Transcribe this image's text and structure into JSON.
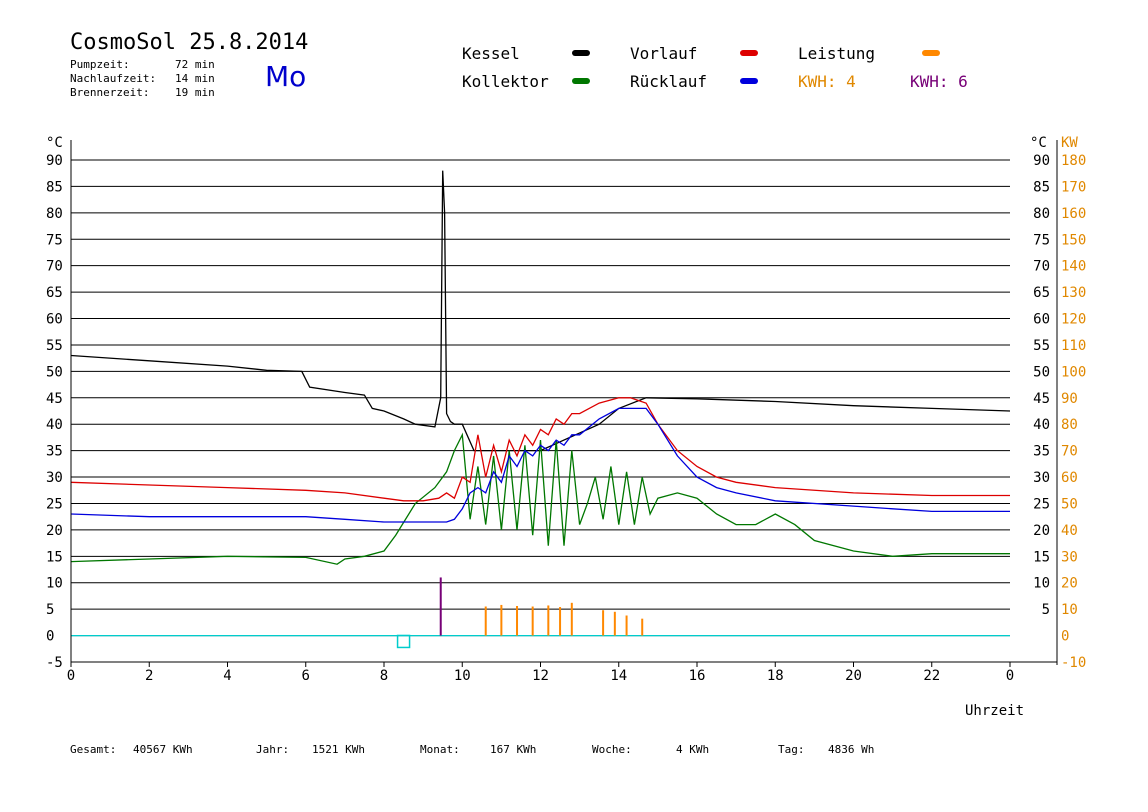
{
  "header": {
    "title": "CosmoSol 25.8.2014",
    "day": "Mo",
    "stats": [
      {
        "label": "Pumpzeit:",
        "value": "72 min"
      },
      {
        "label": "Nachlaufzeit:",
        "value": "14 min"
      },
      {
        "label": "Brennerzeit:",
        "value": "19 min"
      }
    ]
  },
  "legend": {
    "kessel": {
      "label": "Kessel",
      "color": "#000000"
    },
    "kollektor": {
      "label": "Kollektor",
      "color": "#007700"
    },
    "vorlauf": {
      "label": "Vorlauf",
      "color": "#dd0000"
    },
    "ruecklauf": {
      "label": "Rücklauf",
      "color": "#0000dd"
    },
    "leistung": {
      "label": "Leistung",
      "color": "#ff8800"
    },
    "kwh_orange": {
      "label": "KWH: 4",
      "color": "#ff8800"
    },
    "kwh_purple": {
      "label": "KWH: 6",
      "color": "#770077"
    }
  },
  "footer": [
    {
      "label": "Gesamt:",
      "value": "40567 KWh"
    },
    {
      "label": "Jahr:",
      "value": "1521 KWh"
    },
    {
      "label": "Monat:",
      "value": "167 KWh"
    },
    {
      "label": "Woche:",
      "value": "4 KWh"
    },
    {
      "label": "Tag:",
      "value": "4836 Wh"
    }
  ],
  "chart_data": {
    "type": "line",
    "xlabel": "Uhrzeit",
    "ylabel_left": "°C",
    "ylabel_right_temp": "°C",
    "ylabel_right_power": "KW",
    "xlim": [
      0,
      24
    ],
    "ylim": [
      -5,
      90
    ],
    "y2lim": [
      -10,
      180
    ],
    "x_ticks": [
      "0",
      "2",
      "4",
      "6",
      "8",
      "10",
      "12",
      "14",
      "16",
      "18",
      "20",
      "22",
      "0"
    ],
    "y_ticks": [
      -5,
      0,
      5,
      10,
      15,
      20,
      25,
      30,
      35,
      40,
      45,
      50,
      55,
      60,
      65,
      70,
      75,
      80,
      85,
      90
    ],
    "y_ticks_right": [
      5,
      10,
      15,
      20,
      25,
      30,
      35,
      40,
      45,
      50,
      55,
      60,
      65,
      70,
      75,
      80,
      85,
      90
    ],
    "y2_ticks": [
      -10,
      0,
      10,
      20,
      30,
      40,
      50,
      60,
      70,
      80,
      90,
      100,
      110,
      120,
      130,
      140,
      150,
      160,
      170,
      180
    ],
    "grid": true,
    "series": [
      {
        "name": "Kessel",
        "color": "#000000",
        "x": [
          0,
          2,
          4,
          5,
          5.9,
          6.1,
          7,
          7.5,
          7.7,
          8,
          8.5,
          8.8,
          9.3,
          9.45,
          9.5,
          9.55,
          9.6,
          9.7,
          9.8,
          10,
          10.3,
          12,
          13.5,
          14,
          14.7,
          16,
          18,
          20,
          22,
          24
        ],
        "y": [
          53,
          52,
          51,
          50.2,
          50,
          47,
          46,
          45.5,
          43,
          42.5,
          41,
          40,
          39.5,
          45,
          88,
          80,
          42,
          40.5,
          40,
          40,
          35,
          35,
          40,
          43,
          45,
          44.8,
          44.3,
          43.5,
          43,
          42.5
        ]
      },
      {
        "name": "Kollektor",
        "color": "#007700",
        "x": [
          0,
          2,
          4,
          6,
          6.8,
          7,
          7.5,
          8,
          8.3,
          8.8,
          9.3,
          9.6,
          9.8,
          10,
          10.2,
          10.4,
          10.6,
          10.8,
          11,
          11.2,
          11.4,
          11.6,
          11.8,
          12,
          12.2,
          12.4,
          12.6,
          12.8,
          13,
          13.2,
          13.4,
          13.6,
          13.8,
          14,
          14.2,
          14.4,
          14.6,
          14.8,
          15,
          15.5,
          16,
          16.5,
          17,
          17.5,
          18,
          18.5,
          19,
          20,
          21,
          22,
          23,
          24
        ],
        "y": [
          14,
          14.5,
          15,
          14.8,
          13.5,
          14.5,
          15,
          16,
          19,
          25,
          28,
          31,
          35,
          38,
          22,
          32,
          21,
          34,
          20,
          35,
          20,
          36,
          19,
          37,
          17,
          37,
          17,
          35,
          21,
          25,
          30,
          22,
          32,
          21,
          31,
          21,
          30,
          23,
          26,
          27,
          26,
          23,
          21,
          21,
          23,
          21,
          18,
          16,
          15,
          15.5,
          15.5,
          15.5
        ]
      },
      {
        "name": "Vorlauf",
        "color": "#dd0000",
        "x": [
          0,
          2,
          4,
          6,
          7,
          8,
          8.5,
          9,
          9.4,
          9.6,
          9.8,
          10,
          10.2,
          10.4,
          10.6,
          10.8,
          11,
          11.2,
          11.4,
          11.6,
          11.8,
          12,
          12.2,
          12.4,
          12.6,
          12.8,
          13,
          13.5,
          14,
          14.3,
          14.7,
          15,
          15.5,
          16,
          16.5,
          17,
          18,
          20,
          22,
          24
        ],
        "y": [
          29,
          28.5,
          28,
          27.5,
          27,
          26,
          25.5,
          25.5,
          26,
          27,
          26,
          30,
          29,
          38,
          30,
          36,
          31,
          37,
          34,
          38,
          36,
          39,
          38,
          41,
          40,
          42,
          42,
          44,
          45,
          45,
          44,
          40,
          35,
          32,
          30,
          29,
          28,
          27,
          26.5,
          26.5
        ]
      },
      {
        "name": "Rücklauf",
        "color": "#0000dd",
        "x": [
          0,
          2,
          4,
          6,
          7,
          8,
          8.5,
          9,
          9.3,
          9.6,
          9.8,
          10,
          10.2,
          10.4,
          10.6,
          10.8,
          11,
          11.2,
          11.4,
          11.6,
          11.8,
          12,
          12.2,
          12.4,
          12.6,
          12.8,
          13,
          13.5,
          14,
          14.3,
          14.7,
          15,
          15.5,
          16,
          16.5,
          17,
          18,
          20,
          21,
          22,
          24
        ],
        "y": [
          23,
          22.5,
          22.5,
          22.5,
          22,
          21.5,
          21.5,
          21.5,
          21.5,
          21.5,
          22,
          24,
          27,
          28,
          27,
          31,
          29,
          34,
          32,
          35,
          34,
          36,
          35,
          37,
          36,
          38,
          38,
          41,
          43,
          43,
          43,
          40,
          34,
          30,
          28,
          27,
          25.5,
          24.5,
          24,
          23.5,
          23.5
        ]
      },
      {
        "name": "Leistung",
        "color": "#00cccc",
        "x": [
          0,
          24
        ],
        "y": [
          0,
          0
        ]
      }
    ],
    "spikes": [
      {
        "name": "KWH: 6",
        "color": "#770077",
        "x": 9.45,
        "y": 11
      },
      {
        "name": "Leistung",
        "color": "#ff8800",
        "x": [
          10.6,
          11,
          11.4,
          11.8,
          12.2,
          12.5,
          12.8,
          13.6,
          13.9,
          14.2,
          14.6
        ],
        "y": [
          5.5,
          5.8,
          5.6,
          5.5,
          5.7,
          5.4,
          6.2,
          4.8,
          4.5,
          3.8,
          3.2
        ]
      }
    ],
    "marker": {
      "x": 8.5,
      "y": -1.3,
      "color": "#00cccc"
    }
  }
}
